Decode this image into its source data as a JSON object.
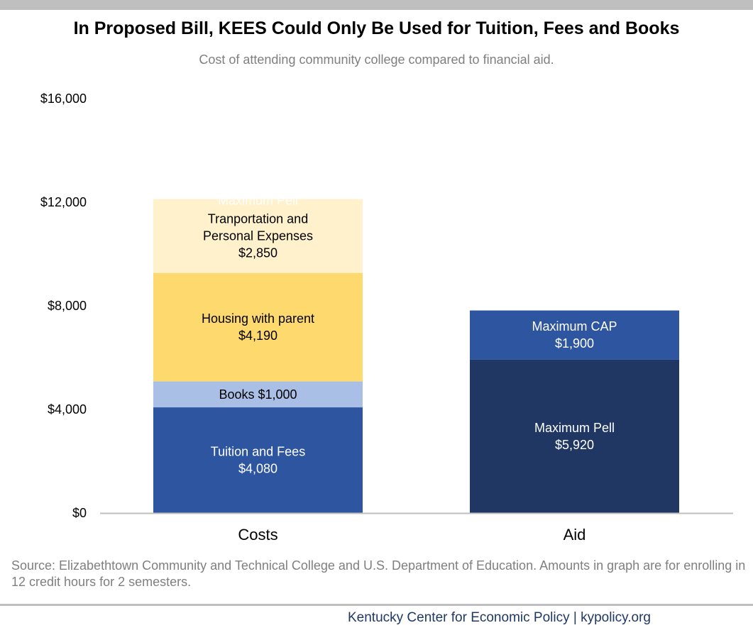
{
  "header": {
    "title": "In Proposed Bill, KEES Could Only Be Used for Tuition, Fees and Books",
    "subtitle": "Cost of attending community college compared to financial aid."
  },
  "chart_data": {
    "type": "bar",
    "stacked": true,
    "categories": [
      "Costs",
      "Aid"
    ],
    "ylim": [
      0,
      16000
    ],
    "yticks": [
      0,
      4000,
      8000,
      12000,
      16000
    ],
    "ytick_labels": [
      "$0",
      "$4,000",
      "$8,000",
      "$12,000",
      "$16,000"
    ],
    "grid": false,
    "legend": "none",
    "segments": [
      {
        "category": "Costs",
        "start": 0,
        "value": 4080,
        "color": "#2e55a0",
        "text_color": "#ffffff",
        "label_lines": [
          "Tuition and Fees",
          "$4,080"
        ]
      },
      {
        "category": "Costs",
        "start": 4080,
        "value": 1000,
        "color": "#a9bfe6",
        "text_color": "#000000",
        "label_lines": [
          "Books $1,000"
        ]
      },
      {
        "category": "Costs",
        "start": 5080,
        "value": 4190,
        "color": "#fdd96e",
        "text_color": "#000000",
        "label_lines": [
          "Housing with parent",
          "$4,190"
        ]
      },
      {
        "category": "Costs",
        "start": 9270,
        "value": 2850,
        "color": "#fff1cc",
        "text_color": "#000000",
        "label_lines": [
          "Tranportation and",
          "Personal Expenses",
          "$2,850"
        ]
      },
      {
        "category": "Aid",
        "start": 0,
        "value": 5920,
        "color": "#203764",
        "text_color": "#ffffff",
        "label_lines": [
          "Maximum Pell",
          "$5,920"
        ]
      },
      {
        "category": "Aid",
        "start": 5920,
        "value": 1900,
        "color": "#2e55a0",
        "text_color": "#ffffff",
        "label_lines": [
          "Maximum CAP",
          "$1,900"
        ]
      }
    ],
    "overflow_label": {
      "category": "Costs",
      "text": "Maximum Pell",
      "color": "#ffffff"
    },
    "colors": {
      "axis": "#bfbfbf"
    }
  },
  "notes": {
    "source": "Source: Elizabethtown Community and Technical College and U.S. Department of Education. Amounts in graph are for enrolling in 12 credit hours for 2 semesters."
  },
  "footer": {
    "text": "Kentucky Center for Economic Policy | kypolicy.org"
  }
}
